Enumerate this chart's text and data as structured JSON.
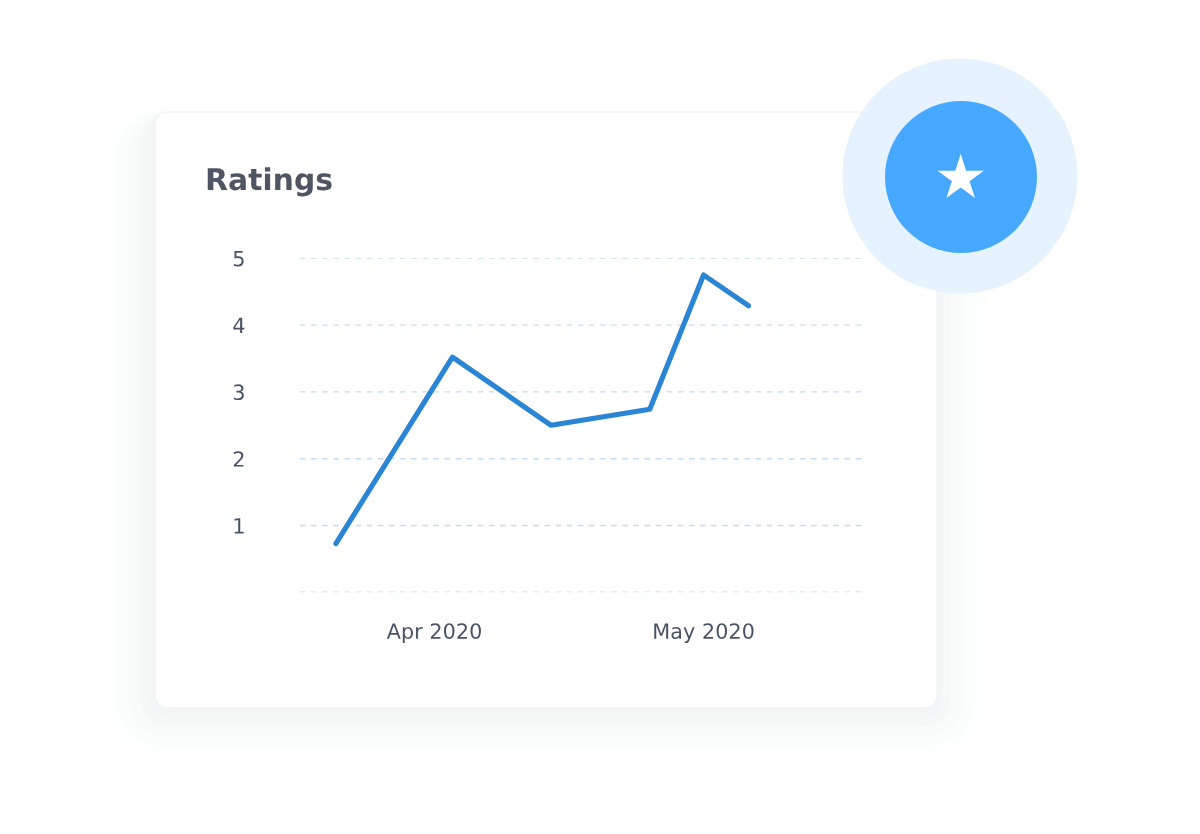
{
  "chart_data": {
    "type": "line",
    "title": "Ratings",
    "x": [
      "2020-03-21",
      "2020-04-03",
      "2020-04-14",
      "2020-04-25",
      "2020-05-01",
      "2020-05-06"
    ],
    "values": [
      0.73,
      3.52,
      2.5,
      2.74,
      4.75,
      4.29
    ],
    "color": "#2a85d5",
    "line_style": "solid",
    "xlim": [
      "2020-03-17",
      "2020-05-19"
    ],
    "xticks": [
      {
        "value": "2020-04-01",
        "label": "Apr 2020"
      },
      {
        "value": "2020-05-01",
        "label": "May 2020"
      }
    ],
    "ylim": [
      0,
      5
    ],
    "yticks": [
      {
        "value": 0,
        "label": null
      },
      1,
      2,
      3,
      4,
      5
    ],
    "grid": "y"
  }
}
